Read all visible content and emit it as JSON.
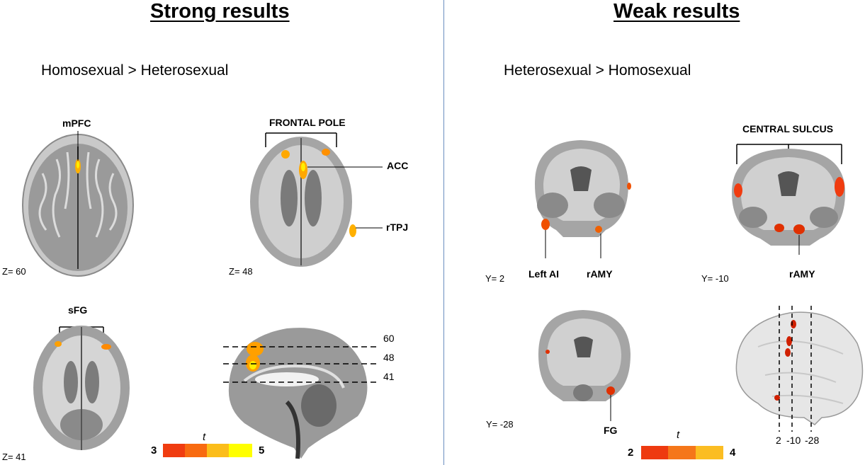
{
  "left_panel": {
    "heading": "Strong results",
    "contrast": "Homosexual > Heterosexual",
    "slices": {
      "z60": {
        "coord": "Z= 60",
        "regions": [
          "mPFC"
        ]
      },
      "z48": {
        "coord": "Z= 48",
        "regions": [
          "FRONTAL POLE",
          "ACC",
          "rTPJ"
        ]
      },
      "z41": {
        "coord": "Z= 41",
        "regions": [
          "sFG"
        ]
      },
      "sagittal": {
        "levels": [
          "60",
          "48",
          "41"
        ]
      }
    },
    "colorbar": {
      "min": "3",
      "max": "5",
      "stat": "t",
      "colors": [
        "#f03c10",
        "#f86a10",
        "#fbbd1a",
        "#ffff00"
      ]
    }
  },
  "right_panel": {
    "heading": "Weak results",
    "contrast": "Heterosexual > Homosexual",
    "slices": {
      "y2": {
        "coord": "Y= 2",
        "regions": [
          "Left AI",
          "rAMY"
        ]
      },
      "y_10": {
        "coord": "Y= -10",
        "regions": [
          "CENTRAL SULCUS",
          "rAMY"
        ]
      },
      "y_28": {
        "coord": "Y= -28",
        "regions": [
          "FG"
        ]
      },
      "render": {
        "levels": [
          "2",
          "-10",
          "-28"
        ]
      }
    },
    "colorbar": {
      "min": "2",
      "max": "4",
      "stat": "t",
      "colors": [
        "#ee3a10",
        "#f5761a",
        "#fbbd22"
      ]
    }
  }
}
